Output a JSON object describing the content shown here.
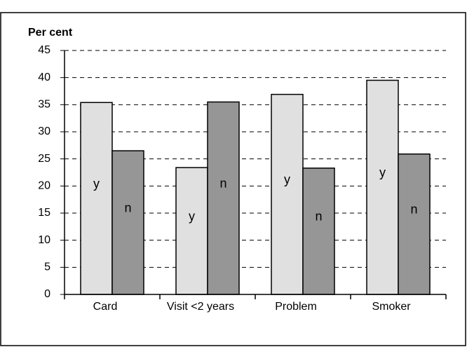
{
  "chart_data": {
    "type": "bar",
    "ylabel": "Per cent",
    "categories": [
      "Card",
      "Visit <2 years",
      "Problem",
      "Smoker"
    ],
    "series": [
      {
        "name": "y",
        "color": "#e0e0e0",
        "values": [
          35.4,
          23.4,
          36.9,
          39.5
        ]
      },
      {
        "name": "n",
        "color": "#969696",
        "values": [
          26.5,
          35.5,
          23.3,
          25.9
        ]
      }
    ],
    "ylim": [
      0,
      45
    ],
    "yticks": [
      0,
      5,
      10,
      15,
      20,
      25,
      30,
      35,
      40,
      45
    ],
    "grid": true
  }
}
